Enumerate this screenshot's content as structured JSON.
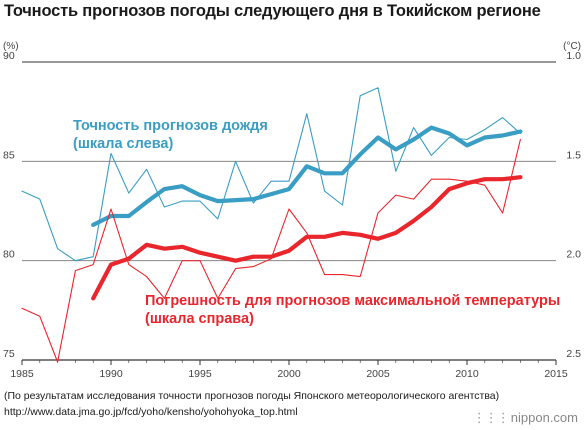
{
  "title": "Точность прогнозов погоды следующего дня в Токийском регионе",
  "source_line1": "(По результатам исследования точности прогнозов погоды Японского метеорологического агентства)",
  "source_line2": "http://www.data.jma.go.jp/fcd/yoho/kensho/yohohyoka_top.html",
  "logo_text": "nippon.com",
  "logo_icon": "nippon-dots-icon",
  "colors": {
    "rain": "#3a9dc4",
    "temp": "#e8262c",
    "axis": "#333333",
    "grid": "#777777"
  },
  "chart_data": {
    "type": "line",
    "x_range": [
      1985,
      2015
    ],
    "x_ticks": [
      "1985",
      "1990",
      "1995",
      "2000",
      "2005",
      "2010",
      "2015"
    ],
    "left_axis": {
      "unit": "(%)",
      "range": [
        75,
        90
      ],
      "ticks": [
        "75",
        "80",
        "85",
        "90"
      ]
    },
    "right_axis": {
      "unit": "(°C)",
      "range": [
        2.5,
        1.0
      ],
      "inverted": true,
      "ticks": [
        "2.5",
        "2.0",
        "1.5",
        "1.0"
      ]
    },
    "gridlines": [
      80,
      85
    ],
    "series": [
      {
        "label_line1": "Точность прогнозов дождя",
        "label_line2": "(шкала слева)",
        "axis": "left",
        "style": "thin",
        "x": [
          1985,
          1986,
          1987,
          1988,
          1989,
          1990,
          1991,
          1992,
          1993,
          1994,
          1995,
          1996,
          1997,
          1998,
          1999,
          2000,
          2001,
          2002,
          2003,
          2004,
          2005,
          2006,
          2007,
          2008,
          2009,
          2010,
          2011,
          2012,
          2013
        ],
        "values": [
          83.5,
          83.1,
          80.6,
          80.0,
          80.2,
          85.4,
          83.4,
          84.6,
          82.7,
          83.0,
          83.0,
          82.1,
          85.0,
          82.9,
          84.0,
          84.0,
          87.4,
          83.5,
          82.8,
          88.3,
          88.7,
          84.5,
          86.7,
          85.3,
          86.2,
          86.1,
          86.6,
          87.2,
          86.4
        ]
      },
      {
        "axis": "left",
        "style": "thick",
        "x": [
          1989,
          1990,
          1991,
          1992,
          1993,
          1994,
          1995,
          1996,
          1997,
          1998,
          1999,
          2000,
          2001,
          2002,
          2003,
          2004,
          2005,
          2006,
          2007,
          2008,
          2009,
          2010,
          2011,
          2012,
          2013
        ],
        "values": [
          81.8,
          82.25,
          82.25,
          82.95,
          83.6,
          83.75,
          83.3,
          83.0,
          83.05,
          83.1,
          83.35,
          83.6,
          84.75,
          84.4,
          84.4,
          85.35,
          86.2,
          85.6,
          86.1,
          86.7,
          86.4,
          85.8,
          86.2,
          86.3,
          86.5
        ]
      },
      {
        "label_line1": "Погрешность для прогнозов максимальной температуры",
        "label_line2": "(шкала справа)",
        "axis": "right",
        "style": "thin",
        "x": [
          1985,
          1986,
          1987,
          1988,
          1989,
          1990,
          1991,
          1992,
          1993,
          1994,
          1995,
          1996,
          1997,
          1998,
          1999,
          2000,
          2001,
          2002,
          2003,
          2004,
          2005,
          2006,
          2007,
          2008,
          2009,
          2010,
          2011,
          2012,
          2013
        ],
        "values": [
          2.24,
          2.28,
          2.51,
          2.05,
          2.02,
          1.74,
          2.02,
          2.08,
          2.19,
          2.0,
          2.0,
          2.19,
          2.04,
          2.03,
          1.99,
          1.74,
          1.86,
          2.07,
          2.07,
          2.08,
          1.76,
          1.67,
          1.69,
          1.59,
          1.59,
          1.6,
          1.62,
          1.76,
          1.39
        ]
      },
      {
        "axis": "right",
        "style": "thick",
        "x": [
          1989,
          1990,
          1991,
          1992,
          1993,
          1994,
          1995,
          1996,
          1997,
          1998,
          1999,
          2000,
          2001,
          2002,
          2003,
          2004,
          2005,
          2006,
          2007,
          2008,
          2009,
          2010,
          2011,
          2012,
          2013
        ],
        "values": [
          2.19,
          2.02,
          1.99,
          1.92,
          1.94,
          1.93,
          1.96,
          1.98,
          2.0,
          1.98,
          1.98,
          1.95,
          1.88,
          1.88,
          1.86,
          1.87,
          1.89,
          1.86,
          1.8,
          1.73,
          1.64,
          1.61,
          1.59,
          1.59,
          1.58
        ]
      }
    ]
  }
}
